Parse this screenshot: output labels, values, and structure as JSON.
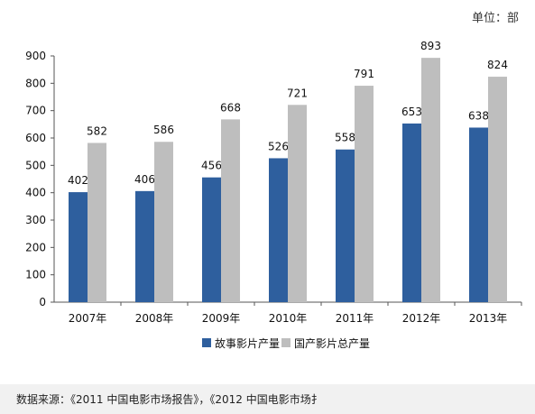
{
  "chart_data": {
    "type": "bar",
    "unit_label": "单位：部",
    "categories": [
      "2007年",
      "2008年",
      "2009年",
      "2010年",
      "2011年",
      "2012年",
      "2013年"
    ],
    "series": [
      {
        "name": "故事影片产量",
        "values": [
          402,
          406,
          456,
          526,
          558,
          653,
          638
        ],
        "color": "#2e5f9e"
      },
      {
        "name": "国产影片总产量",
        "values": [
          582,
          586,
          668,
          721,
          791,
          893,
          824
        ],
        "color": "#bebebe"
      }
    ],
    "ylim": [
      0,
      900
    ],
    "yticks": [
      0,
      100,
      200,
      300,
      400,
      500,
      600,
      700,
      800,
      900
    ],
    "grid": false,
    "legend_position": "bottom"
  },
  "source": "数据来源：《2011 中国电影市场报告》，《2012 中国电影市场扌"
}
